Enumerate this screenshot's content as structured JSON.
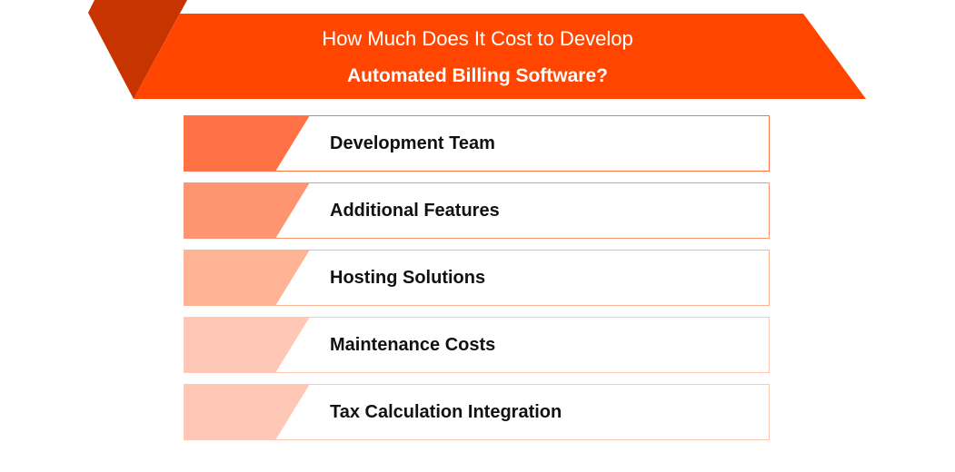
{
  "header": {
    "line1": "How Much Does It Cost to Develop",
    "line2": "Automated Billing Software?",
    "color": "#FF4500",
    "accent_dark": "#C83400"
  },
  "items": [
    {
      "label": "Development Team",
      "color": "#FF7245"
    },
    {
      "label": "Additional Features",
      "color": "#FF9570"
    },
    {
      "label": "Hosting Solutions",
      "color": "#FFB395"
    },
    {
      "label": "Maintenance Costs",
      "color": "#FFC8B6"
    },
    {
      "label": "Tax Calculation Integration",
      "color": "#FFC8B6"
    }
  ]
}
